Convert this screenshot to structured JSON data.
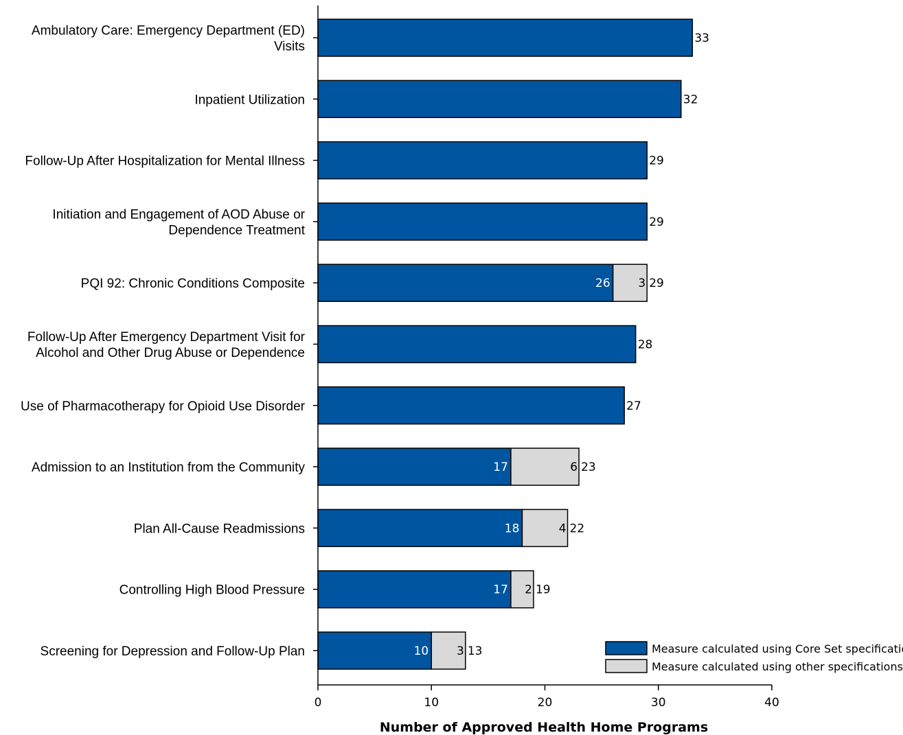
{
  "chart_data": {
    "type": "bar",
    "orientation": "horizontal",
    "stacked": true,
    "title": "",
    "xlabel": "Number of Approved Health Home Programs",
    "ylabel": "",
    "xlim": [
      0,
      40
    ],
    "xticks": [
      0,
      10,
      20,
      30,
      40
    ],
    "grid": false,
    "legend_position": "bottom-right",
    "categories": [
      [
        "Ambulatory Care: Emergency Department (ED)",
        "Visits"
      ],
      [
        "Inpatient Utilization"
      ],
      [
        "Follow-Up After Hospitalization for Mental Illness"
      ],
      [
        "Initiation and Engagement of AOD Abuse or",
        "Dependence Treatment"
      ],
      [
        "PQI 92: Chronic Conditions Composite"
      ],
      [
        "Follow-Up After Emergency Department Visit for",
        "Alcohol and Other Drug Abuse or Dependence"
      ],
      [
        "Use of Pharmacotherapy for Opioid Use Disorder"
      ],
      [
        "Admission to an Institution from the Community"
      ],
      [
        "Plan All-Cause Readmissions"
      ],
      [
        "Controlling High Blood Pressure"
      ],
      [
        "Screening for Depression and Follow-Up Plan"
      ]
    ],
    "series": [
      {
        "name": "Measure calculated using Core Set specifications",
        "color": "#0055a0",
        "values": [
          33,
          32,
          29,
          29,
          26,
          28,
          27,
          17,
          18,
          17,
          10
        ]
      },
      {
        "name": "Measure calculated using other specifications",
        "color": "#d9d9d9",
        "values": [
          0,
          0,
          0,
          0,
          3,
          0,
          0,
          6,
          4,
          2,
          3
        ]
      }
    ],
    "totals": [
      33,
      32,
      29,
      29,
      29,
      28,
      27,
      23,
      22,
      19,
      13
    ]
  }
}
